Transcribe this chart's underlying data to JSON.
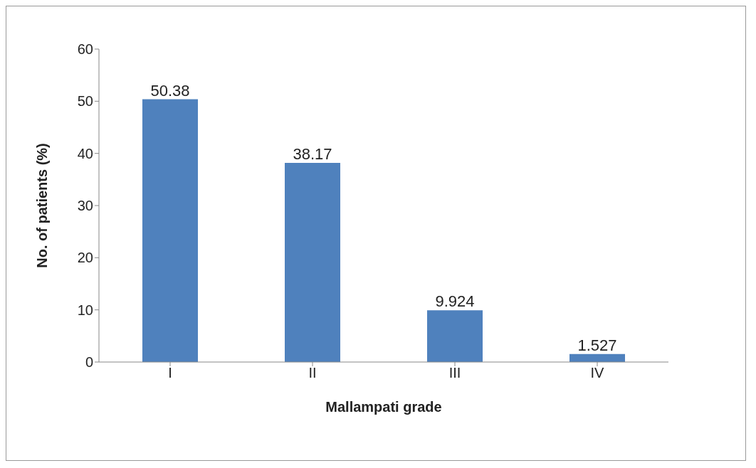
{
  "chart_data": {
    "type": "bar",
    "categories": [
      "I",
      "II",
      "III",
      "IV"
    ],
    "values": [
      50.38,
      38.17,
      9.924,
      1.527
    ],
    "color": "#4f81bd",
    "xlabel": "Mallampati grade",
    "ylabel": "No. of patients (%)",
    "ylim": [
      0,
      60
    ],
    "yticks": [
      0,
      10,
      20,
      30,
      40,
      50,
      60
    ],
    "data_labels": true,
    "grid": false,
    "legend": false
  }
}
